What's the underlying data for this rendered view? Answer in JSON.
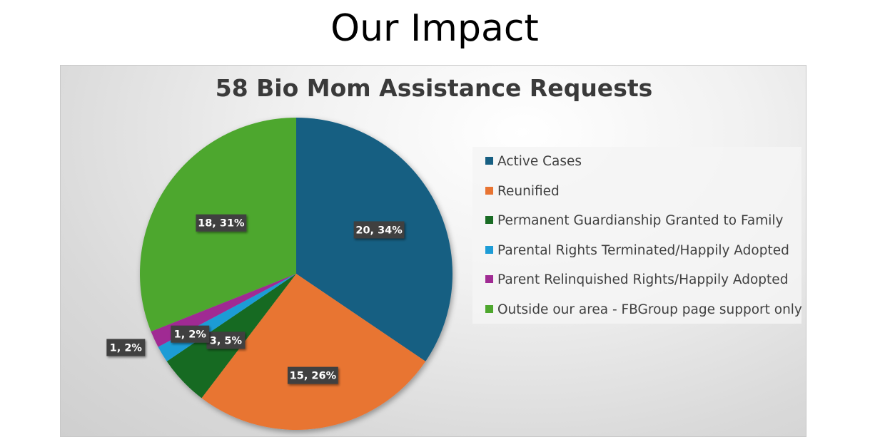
{
  "slide": {
    "title": "Our Impact"
  },
  "chart_data": {
    "type": "pie",
    "title": "58 Bio Mom Assistance Requests",
    "total": 58,
    "categories": [
      "Active Cases",
      "Reunified",
      "Permanent Guardianship Granted to Family",
      "Parental Rights Terminated/Happily Adopted",
      "Parent Relinquished Rights/Happily Adopted",
      "Outside our area - FBGroup page support only"
    ],
    "values": [
      20,
      15,
      3,
      1,
      1,
      18
    ],
    "percents": [
      34,
      26,
      5,
      2,
      2,
      31
    ],
    "data_labels": [
      "20, 34%",
      "15, 26%",
      "3, 5%",
      "1, 2%",
      "1, 2%",
      "18, 31%"
    ],
    "colors": [
      "#175f82",
      "#e87432",
      "#196b24",
      "#1d9cd6",
      "#a02b93",
      "#4ea72e"
    ],
    "legend_position": "right"
  }
}
